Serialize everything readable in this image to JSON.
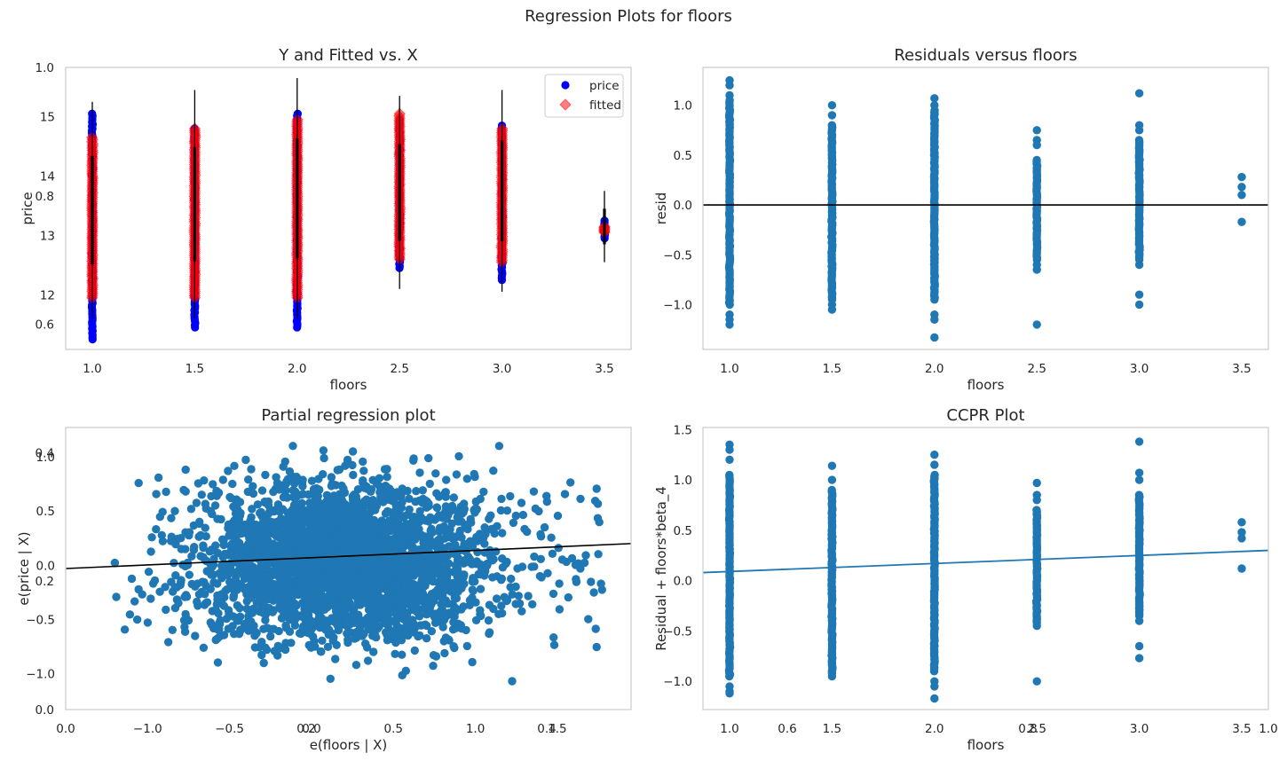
{
  "figure": {
    "suptitle": "Regression Plots for floors",
    "background_ticks": {
      "x": [
        "0.0",
        "0.2",
        "0.4",
        "0.6",
        "0.8",
        "1.0"
      ],
      "y": [
        "0.0",
        "0.2",
        "0.4",
        "0.6",
        "0.8",
        "1.0"
      ]
    }
  },
  "chart_data": [
    {
      "type": "scatter",
      "title": "Y and Fitted vs. X",
      "xlabel": "floors",
      "ylabel": "price",
      "xlim": [
        0.87,
        3.63
      ],
      "ylim": [
        11.08,
        15.83
      ],
      "xticks": [
        "1.0",
        "1.5",
        "2.0",
        "2.5",
        "3.0",
        "3.5"
      ],
      "yticks": [
        "12",
        "13",
        "14",
        "15"
      ],
      "grid": false,
      "legend": {
        "placement": "top-right",
        "entries": [
          "price",
          "fitted"
        ]
      },
      "colors": {
        "price": "#0000ff",
        "fitted": "#ff0000",
        "interval": "#000000"
      },
      "series": [
        {
          "name": "price",
          "groups": [
            {
              "x": 1.0,
              "min": 11.25,
              "max": 15.05,
              "core": [
                11.9,
                14.4
              ]
            },
            {
              "x": 1.5,
              "min": 11.45,
              "max": 14.8,
              "core": [
                11.9,
                14.3
              ]
            },
            {
              "x": 2.0,
              "min": 11.45,
              "max": 15.05,
              "core": [
                11.9,
                15.0
              ]
            },
            {
              "x": 2.5,
              "min": 12.45,
              "max": 14.95,
              "core": [
                12.7,
                14.7
              ]
            },
            {
              "x": 3.0,
              "min": 12.25,
              "max": 14.85,
              "core": [
                12.5,
                14.5
              ]
            },
            {
              "x": 3.5,
              "min": 12.95,
              "max": 13.25,
              "core": [
                12.97,
                13.22
              ]
            }
          ]
        },
        {
          "name": "fitted",
          "groups": [
            {
              "x": 1.0,
              "min": 11.95,
              "max": 14.65
            },
            {
              "x": 1.5,
              "min": 11.95,
              "max": 14.8
            },
            {
              "x": 2.0,
              "min": 11.95,
              "max": 14.95
            },
            {
              "x": 2.5,
              "min": 12.6,
              "max": 15.05
            },
            {
              "x": 3.0,
              "min": 12.55,
              "max": 14.8
            },
            {
              "x": 3.5,
              "min": 13.05,
              "max": 13.15
            }
          ]
        }
      ],
      "intervals": [
        {
          "x": 1.0,
          "lo": 11.6,
          "hi": 15.25
        },
        {
          "x": 1.5,
          "lo": 11.6,
          "hi": 15.45
        },
        {
          "x": 2.0,
          "lo": 11.6,
          "hi": 15.65
        },
        {
          "x": 2.5,
          "lo": 12.1,
          "hi": 15.35
        },
        {
          "x": 3.0,
          "lo": 12.05,
          "hi": 15.45
        },
        {
          "x": 3.5,
          "lo": 12.55,
          "hi": 13.75
        }
      ]
    },
    {
      "type": "scatter",
      "title": "Residuals versus floors",
      "xlabel": "floors",
      "ylabel": "resid",
      "xlim": [
        0.87,
        3.63
      ],
      "ylim": [
        -1.45,
        1.38
      ],
      "xticks": [
        "1.0",
        "1.5",
        "2.0",
        "2.5",
        "3.0",
        "3.5"
      ],
      "yticks": [
        "−1.0",
        "−0.5",
        "0.0",
        "0.5",
        "1.0"
      ],
      "ytick_values": [
        -1.0,
        -0.5,
        0.0,
        0.5,
        1.0
      ],
      "grid": false,
      "colors": {
        "points": "#1f77b4",
        "line": "#000000"
      },
      "hline": 0.0,
      "groups": [
        {
          "x": 1.0,
          "core": [
            -1.0,
            1.05
          ],
          "outliers": [
            1.25,
            1.2,
            1.1,
            -1.1,
            -1.15,
            -1.2
          ]
        },
        {
          "x": 1.5,
          "core": [
            -0.95,
            0.8
          ],
          "outliers": [
            1.0,
            0.9,
            -1.0,
            -1.05
          ]
        },
        {
          "x": 2.0,
          "core": [
            -0.95,
            0.95
          ],
          "outliers": [
            1.07,
            1.0,
            -1.1,
            -1.15,
            -1.33
          ]
        },
        {
          "x": 2.5,
          "core": [
            -0.55,
            0.45
          ],
          "outliers": [
            0.75,
            0.65,
            0.6,
            -0.6,
            -0.65,
            -1.2
          ]
        },
        {
          "x": 3.0,
          "core": [
            -0.55,
            0.65
          ],
          "outliers": [
            1.12,
            0.8,
            0.75,
            -0.6,
            -0.9,
            -1.0
          ]
        },
        {
          "x": 3.5,
          "points": [
            0.28,
            0.18,
            0.1,
            -0.17
          ]
        }
      ]
    },
    {
      "type": "scatter",
      "title": "Partial regression plot",
      "xlabel": "e(floors | X)",
      "ylabel": "e(price | X)",
      "xlim": [
        -1.5,
        1.95
      ],
      "ylim": [
        -1.33,
        1.27
      ],
      "xticks": [
        "−1.0",
        "−0.5",
        "0.0",
        "0.5",
        "1.0",
        "1.5"
      ],
      "xtick_values": [
        -1.0,
        -0.5,
        0.0,
        0.5,
        1.0,
        1.5
      ],
      "yticks": [
        "−1.0",
        "−0.5",
        "0.0",
        "0.5",
        "1.0"
      ],
      "ytick_values": [
        -1.0,
        -0.5,
        0.0,
        0.5,
        1.0
      ],
      "grid": false,
      "colors": {
        "points": "#1f77b4",
        "line": "#000000"
      },
      "cloud": {
        "x_range": [
          -1.2,
          1.8
        ],
        "y_range": [
          -1.27,
          1.13
        ],
        "core_x": [
          -0.75,
          1.15
        ],
        "core_y": [
          -0.75,
          0.85
        ]
      },
      "fit_line": {
        "x": [
          -1.5,
          1.95
        ],
        "y": [
          -0.03,
          0.2
        ]
      }
    },
    {
      "type": "scatter",
      "title": "CCPR Plot",
      "xlabel": "floors",
      "ylabel": "Residual + floors*beta_4",
      "xlim": [
        0.87,
        3.63
      ],
      "ylim": [
        -1.28,
        1.52
      ],
      "xticks": [
        "1.0",
        "1.5",
        "2.0",
        "2.5",
        "3.0",
        "3.5"
      ],
      "yticks": [
        "−1.0",
        "−0.5",
        "0.0",
        "0.5",
        "1.0",
        "1.5"
      ],
      "ytick_values": [
        -1.0,
        -0.5,
        0.0,
        0.5,
        1.0,
        1.5
      ],
      "grid": false,
      "colors": {
        "points": "#1f77b4",
        "line": "#1f77b4"
      },
      "fit_line": {
        "x": [
          0.87,
          3.63
        ],
        "y": [
          0.08,
          0.3
        ]
      },
      "groups": [
        {
          "x": 1.0,
          "core": [
            -0.95,
            1.05
          ],
          "outliers": [
            1.35,
            1.3,
            1.2,
            -1.05,
            -1.1,
            -1.12
          ]
        },
        {
          "x": 1.5,
          "core": [
            -0.9,
            0.9
          ],
          "outliers": [
            1.14,
            1.0,
            -0.92,
            -0.95
          ]
        },
        {
          "x": 2.0,
          "core": [
            -0.9,
            1.05
          ],
          "outliers": [
            1.25,
            1.15,
            -1.0,
            -1.05,
            -1.17
          ]
        },
        {
          "x": 2.5,
          "core": [
            -0.4,
            0.7
          ],
          "outliers": [
            0.97,
            0.85,
            0.8,
            -0.42,
            -0.45,
            -1.0
          ]
        },
        {
          "x": 3.0,
          "core": [
            -0.35,
            0.85
          ],
          "outliers": [
            1.38,
            1.07,
            1.0,
            -0.4,
            -0.65,
            -0.77
          ]
        },
        {
          "x": 3.5,
          "points": [
            0.58,
            0.48,
            0.42,
            0.12
          ]
        }
      ]
    }
  ]
}
